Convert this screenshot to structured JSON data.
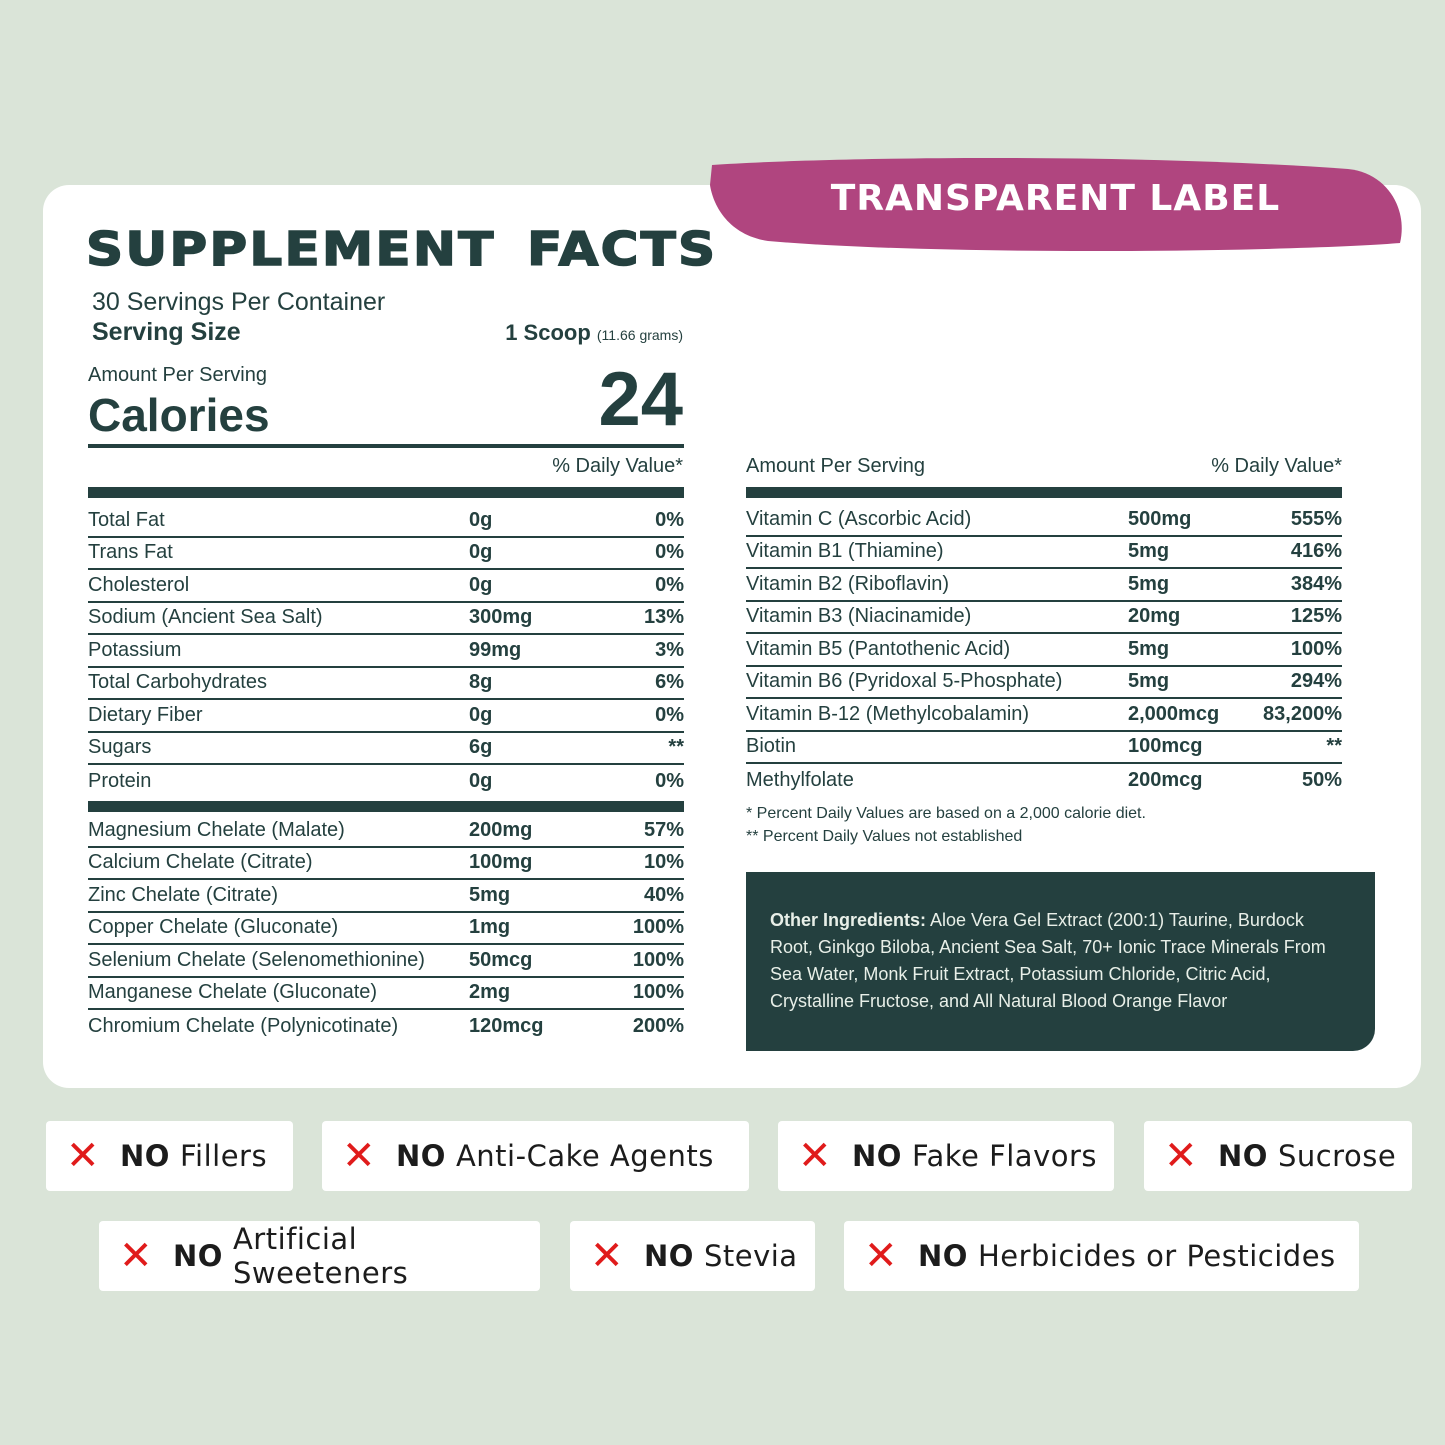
{
  "colors": {
    "background": "#dae4d8",
    "dark": "#24403f",
    "accent": "#b0457f",
    "x_mark": "#e01b1b"
  },
  "banner": "TRANSPARENT LABEL",
  "title": "SUPPLEMENT FACTS",
  "servings_per_container": "30 Servings Per Container",
  "serving_size_label": "Serving Size",
  "serving_size_value": "1 Scoop",
  "serving_size_grams": "(11.66 grams)",
  "amount_per_serving": "Amount Per Serving",
  "calories_label": "Calories",
  "calories_value": "24",
  "daily_value_header": "% Daily Value*",
  "left_group1": [
    {
      "name": "Total Fat",
      "amount": "0g",
      "dv": "0%"
    },
    {
      "name": "Trans Fat",
      "amount": "0g",
      "dv": "0%"
    },
    {
      "name": "Cholesterol",
      "amount": "0g",
      "dv": "0%"
    },
    {
      "name": "Sodium (Ancient Sea Salt)",
      "amount": "300mg",
      "dv": "13%"
    },
    {
      "name": "Potassium",
      "amount": "99mg",
      "dv": "3%"
    },
    {
      "name": "Total Carbohydrates",
      "amount": "8g",
      "dv": "6%"
    },
    {
      "name": "Dietary Fiber",
      "amount": "0g",
      "dv": "0%"
    },
    {
      "name": "Sugars",
      "amount": "6g",
      "dv": "**"
    },
    {
      "name": "Protein",
      "amount": "0g",
      "dv": "0%"
    }
  ],
  "left_group2": [
    {
      "name": "Magnesium Chelate (Malate)",
      "amount": "200mg",
      "dv": "57%"
    },
    {
      "name": "Calcium Chelate (Citrate)",
      "amount": "100mg",
      "dv": "10%"
    },
    {
      "name": "Zinc Chelate (Citrate)",
      "amount": "5mg",
      "dv": "40%"
    },
    {
      "name": "Copper Chelate (Gluconate)",
      "amount": "1mg",
      "dv": "100%"
    },
    {
      "name": "Selenium Chelate (Selenomethionine)",
      "amount": "50mcg",
      "dv": "100%"
    },
    {
      "name": "Manganese Chelate (Gluconate)",
      "amount": "2mg",
      "dv": "100%"
    },
    {
      "name": "Chromium Chelate (Polynicotinate)",
      "amount": "120mcg",
      "dv": "200%"
    }
  ],
  "right_header_amount": "Amount Per Serving",
  "right_header_dv": "% Daily Value*",
  "right_rows": [
    {
      "name": "Vitamin C (Ascorbic Acid)",
      "amount": "500mg",
      "dv": "555%"
    },
    {
      "name": "Vitamin B1 (Thiamine)",
      "amount": "5mg",
      "dv": "416%"
    },
    {
      "name": "Vitamin B2 (Riboflavin)",
      "amount": "5mg",
      "dv": "384%"
    },
    {
      "name": "Vitamin B3 (Niacinamide)",
      "amount": "20mg",
      "dv": "125%"
    },
    {
      "name": "Vitamin B5 (Pantothenic Acid)",
      "amount": "5mg",
      "dv": "100%"
    },
    {
      "name": "Vitamin B6 (Pyridoxal 5-Phosphate)",
      "amount": "5mg",
      "dv": "294%"
    },
    {
      "name": "Vitamin B-12 (Methylcobalamin)",
      "amount": "2,000mcg",
      "dv": "83,200%"
    },
    {
      "name": "Biotin",
      "amount": "100mcg",
      "dv": "**"
    },
    {
      "name": "Methylfolate",
      "amount": "200mcg",
      "dv": "50%"
    }
  ],
  "footnote1": "*  Percent Daily Values are based on a 2,000 calorie diet.",
  "footnote2": "** Percent Daily Values not established",
  "other_label": "Other Ingredients:",
  "other_text": " Aloe Vera Gel Extract (200:1) Taurine, Burdock Root, Ginkgo Biloba, Ancient Sea Salt, 70+ Ionic Trace Minerals From Sea Water, Monk Fruit Extract, Potassium Chloride, Citric Acid, Crystalline Fructose, and All Natural Blood Orange Flavor",
  "badges": [
    {
      "no": "NO",
      "text": "Fillers",
      "icon": "x-icon"
    },
    {
      "no": "NO",
      "text": "Anti-Cake Agents",
      "icon": "x-icon"
    },
    {
      "no": "NO",
      "text": "Fake Flavors",
      "icon": "x-icon"
    },
    {
      "no": "NO",
      "text": "Sucrose",
      "icon": "x-icon"
    },
    {
      "no": "NO",
      "text": "Artificial Sweeteners",
      "icon": "x-icon"
    },
    {
      "no": "NO",
      "text": "Stevia",
      "icon": "x-icon"
    },
    {
      "no": "NO",
      "text": "Herbicides or Pesticides",
      "icon": "x-icon"
    }
  ]
}
